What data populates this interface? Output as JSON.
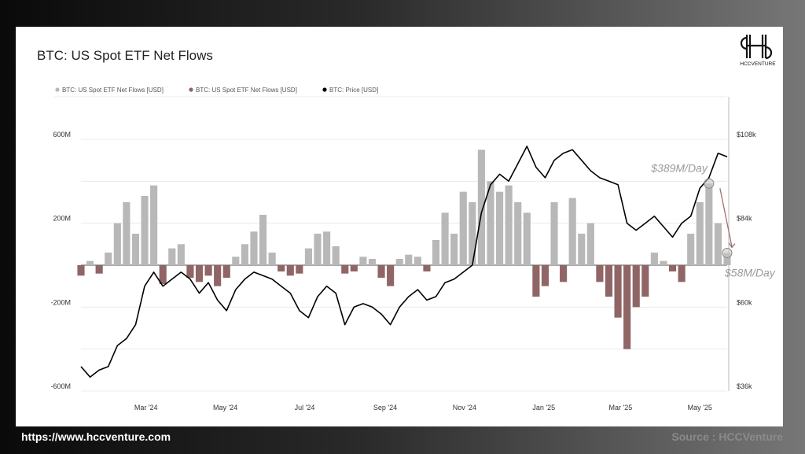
{
  "footer": {
    "website": "https://www.hccventure.com",
    "source": "Source : HCCVenture"
  },
  "logo_text": "HCCVENTURE",
  "colors": {
    "inflow": "#b8b8b8",
    "outflow": "#8f6565",
    "price": "#000000",
    "annotation": "#9a9a9a",
    "arrow": "#a07070"
  },
  "chart_data": {
    "type": "bar+line",
    "title": "BTC: US Spot ETF Net Flows",
    "legend": [
      {
        "name": "BTC: US Spot ETF Net Flows [USD]",
        "color": "#b8b8b8"
      },
      {
        "name": "BTC: US Spot ETF Net Flows [USD]",
        "color": "#8f6565"
      },
      {
        "name": "BTC: Price [USD]",
        "color": "#000000"
      }
    ],
    "legend_position": "top-left",
    "grid": true,
    "x_range": [
      "2024-01-11",
      "2025-05-22"
    ],
    "x_ticks": [
      {
        "date": "2024-03-01",
        "label": "Mar '24"
      },
      {
        "date": "2024-05-01",
        "label": "May '24"
      },
      {
        "date": "2024-07-01",
        "label": "Jul '24"
      },
      {
        "date": "2024-09-01",
        "label": "Sep '24"
      },
      {
        "date": "2024-11-01",
        "label": "Nov '24"
      },
      {
        "date": "2025-01-01",
        "label": "Jan '25"
      },
      {
        "date": "2025-03-01",
        "label": "Mar '25"
      },
      {
        "date": "2025-05-01",
        "label": "May '25"
      }
    ],
    "y_left": {
      "range": [
        -600,
        600
      ],
      "unit": "M",
      "ticks": [
        {
          "v": 600,
          "label": "600M"
        },
        {
          "v": 200,
          "label": "200M"
        },
        {
          "v": -200,
          "label": "-200M"
        },
        {
          "v": -600,
          "label": "-600M"
        }
      ]
    },
    "y_right": {
      "range": [
        36,
        108
      ],
      "unit": "k USD",
      "ticks": [
        {
          "v": 108,
          "label": "$108k"
        },
        {
          "v": 84,
          "label": "$84k"
        },
        {
          "v": 60,
          "label": "$60k"
        },
        {
          "v": 36,
          "label": "$36k"
        }
      ]
    },
    "dates": [
      "2024-01-11",
      "2024-01-18",
      "2024-01-25",
      "2024-02-01",
      "2024-02-08",
      "2024-02-15",
      "2024-02-22",
      "2024-02-29",
      "2024-03-07",
      "2024-03-14",
      "2024-03-21",
      "2024-03-28",
      "2024-04-04",
      "2024-04-11",
      "2024-04-18",
      "2024-04-25",
      "2024-05-02",
      "2024-05-09",
      "2024-05-16",
      "2024-05-23",
      "2024-05-30",
      "2024-06-06",
      "2024-06-13",
      "2024-06-20",
      "2024-06-27",
      "2024-07-04",
      "2024-07-11",
      "2024-07-18",
      "2024-07-25",
      "2024-08-01",
      "2024-08-08",
      "2024-08-15",
      "2024-08-22",
      "2024-08-29",
      "2024-09-05",
      "2024-09-12",
      "2024-09-19",
      "2024-09-26",
      "2024-10-03",
      "2024-10-10",
      "2024-10-17",
      "2024-10-24",
      "2024-10-31",
      "2024-11-07",
      "2024-11-14",
      "2024-11-21",
      "2024-11-28",
      "2024-12-05",
      "2024-12-12",
      "2024-12-19",
      "2024-12-26",
      "2025-01-02",
      "2025-01-09",
      "2025-01-16",
      "2025-01-23",
      "2025-01-30",
      "2025-02-06",
      "2025-02-13",
      "2025-02-20",
      "2025-02-27",
      "2025-03-06",
      "2025-03-13",
      "2025-03-20",
      "2025-03-27",
      "2025-04-03",
      "2025-04-10",
      "2025-04-17",
      "2025-04-24",
      "2025-05-01",
      "2025-05-08",
      "2025-05-15",
      "2025-05-22"
    ],
    "net_flows_musd": [
      -50,
      20,
      -40,
      60,
      200,
      300,
      150,
      330,
      380,
      -90,
      80,
      100,
      -60,
      -80,
      -50,
      -100,
      -60,
      40,
      100,
      160,
      240,
      60,
      -30,
      -50,
      -40,
      80,
      150,
      160,
      90,
      -40,
      -30,
      40,
      30,
      -60,
      -100,
      30,
      50,
      40,
      -30,
      120,
      250,
      150,
      350,
      300,
      550,
      400,
      350,
      380,
      300,
      250,
      -150,
      -100,
      300,
      -80,
      320,
      150,
      200,
      -80,
      -150,
      -250,
      -400,
      -200,
      -150,
      60,
      20,
      -30,
      -80,
      150,
      300,
      389,
      200,
      58
    ],
    "price_kusd": [
      43,
      40,
      42,
      43,
      49,
      51,
      55,
      66,
      70,
      66,
      68,
      70,
      68,
      64,
      67,
      62,
      59,
      65,
      68,
      70,
      69,
      68,
      66,
      64,
      59,
      57,
      63,
      66,
      64,
      55,
      60,
      61,
      60,
      58,
      55,
      60,
      63,
      65,
      62,
      63,
      67,
      68,
      70,
      72,
      87,
      95,
      98,
      96,
      101,
      106,
      100,
      97,
      102,
      104,
      105,
      102,
      99,
      97,
      96,
      95,
      84,
      82,
      84,
      86,
      83,
      80,
      84,
      86,
      94,
      97,
      104,
      103
    ],
    "annotations": [
      {
        "date": "2025-05-08",
        "value": 389,
        "label": "$389M/Day"
      },
      {
        "date": "2025-05-22",
        "value": 58,
        "label": "$58M/Day"
      }
    ]
  }
}
